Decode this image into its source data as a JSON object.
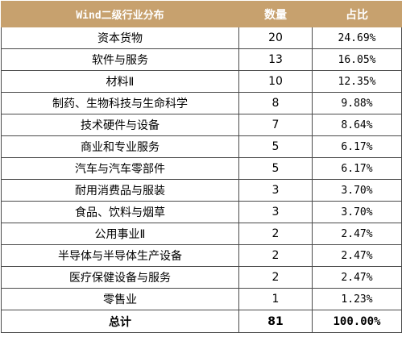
{
  "table": {
    "headers": [
      "Wind二级行业分布",
      "数量",
      "占比"
    ],
    "rows": [
      {
        "industry": "资本货物",
        "count": "20",
        "share": "24.69%"
      },
      {
        "industry": "软件与服务",
        "count": "13",
        "share": "16.05%"
      },
      {
        "industry": "材料Ⅱ",
        "count": "10",
        "share": "12.35%"
      },
      {
        "industry": "制药、生物科技与生命科学",
        "count": "8",
        "share": "9.88%"
      },
      {
        "industry": "技术硬件与设备",
        "count": "7",
        "share": "8.64%"
      },
      {
        "industry": "商业和专业服务",
        "count": "5",
        "share": "6.17%"
      },
      {
        "industry": "汽车与汽车零部件",
        "count": "5",
        "share": "6.17%"
      },
      {
        "industry": "耐用消费品与服装",
        "count": "3",
        "share": "3.70%"
      },
      {
        "industry": "食品、饮料与烟草",
        "count": "3",
        "share": "3.70%"
      },
      {
        "industry": "公用事业Ⅱ",
        "count": "2",
        "share": "2.47%"
      },
      {
        "industry": "半导体与半导体生产设备",
        "count": "2",
        "share": "2.47%"
      },
      {
        "industry": "医疗保健设备与服务",
        "count": "2",
        "share": "2.47%"
      },
      {
        "industry": "零售业",
        "count": "1",
        "share": "1.23%"
      }
    ],
    "total": {
      "label": "总计",
      "count": "81",
      "share": "100.00%"
    }
  },
  "colors": {
    "header_background": "#c7a16e",
    "header_text": "#ffffff",
    "border": "#4a4a4a"
  }
}
